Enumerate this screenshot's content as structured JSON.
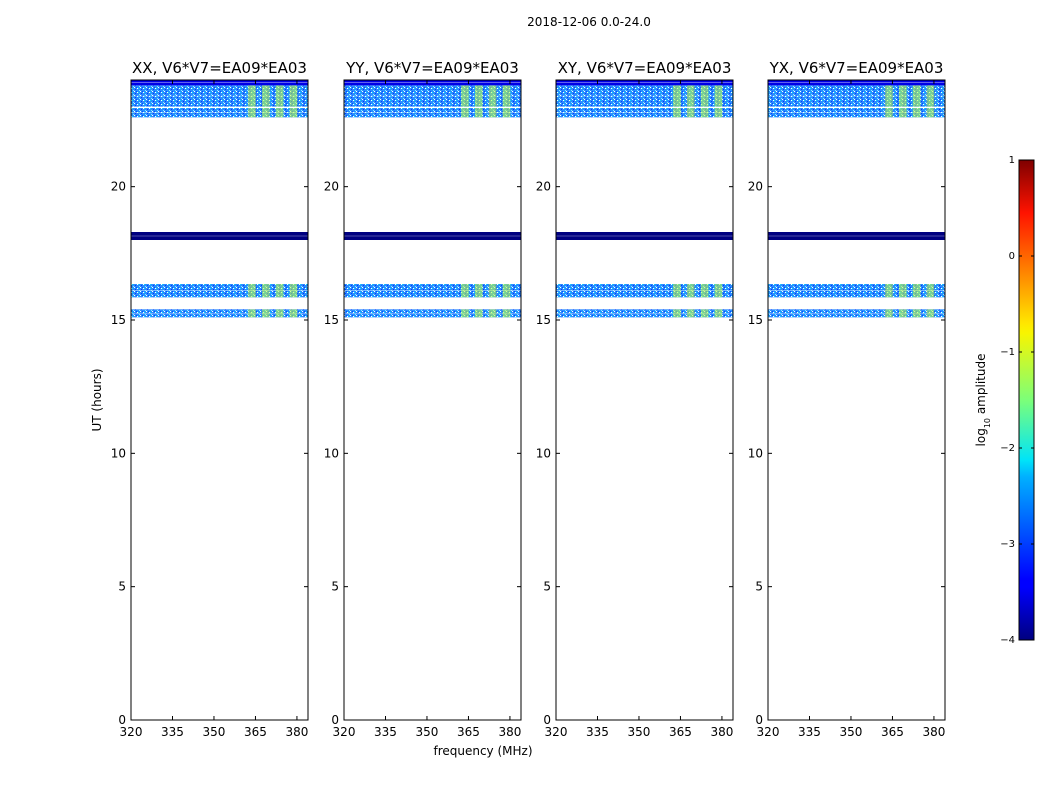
{
  "figure": {
    "suptitle": "2018-12-06 0.0-24.0",
    "xlabel": "frequency (MHz)",
    "ylabel": "UT (hours)"
  },
  "colorbar": {
    "label_prefix": "log",
    "label_sub": "10",
    "label_suffix": " amplitude",
    "range": [
      -4,
      1
    ],
    "ticks": [
      1,
      0,
      -1,
      -2,
      -3,
      -4
    ],
    "tick_labels": [
      "1",
      "0",
      "−1",
      "−2",
      "−3",
      "−4"
    ],
    "colormap": "jet"
  },
  "chart_data": {
    "type": "heatmap",
    "xlim": [
      320,
      384
    ],
    "ylim": [
      0,
      24
    ],
    "x_ticks": [
      320,
      335,
      350,
      365,
      380
    ],
    "x_tick_labels": [
      "320",
      "335",
      "350",
      "365",
      "380"
    ],
    "y_ticks": [
      0,
      5,
      10,
      15,
      20
    ],
    "y_tick_labels": [
      "0",
      "5",
      "10",
      "15",
      "20"
    ],
    "panels": [
      {
        "title": "XX, V6*V7=EA09*EA03",
        "polarization": "XX"
      },
      {
        "title": "YY, V6*V7=EA09*EA03",
        "polarization": "YY"
      },
      {
        "title": "XY, V6*V7=EA09*EA03",
        "polarization": "XY"
      },
      {
        "title": "YX, V6*V7=EA09*EA03",
        "polarization": "YX"
      }
    ],
    "data_time_blocks_ut": [
      {
        "start": 15.1,
        "end": 15.4,
        "typical_log_amp": -2.5
      },
      {
        "start": 15.85,
        "end": 16.35,
        "typical_log_amp": -2.5
      },
      {
        "start": 18.0,
        "end": 18.3,
        "typical_log_amp": -4.0
      },
      {
        "start": 22.6,
        "end": 22.95,
        "typical_log_amp": -2.5
      },
      {
        "start": 23.0,
        "end": 23.8,
        "typical_log_amp": -2.5
      },
      {
        "start": 23.8,
        "end": 24.0,
        "typical_log_amp": -3.5
      }
    ],
    "rfi_frequency_range_mhz": [
      362,
      382
    ],
    "rfi_log_amp": -1.2
  }
}
